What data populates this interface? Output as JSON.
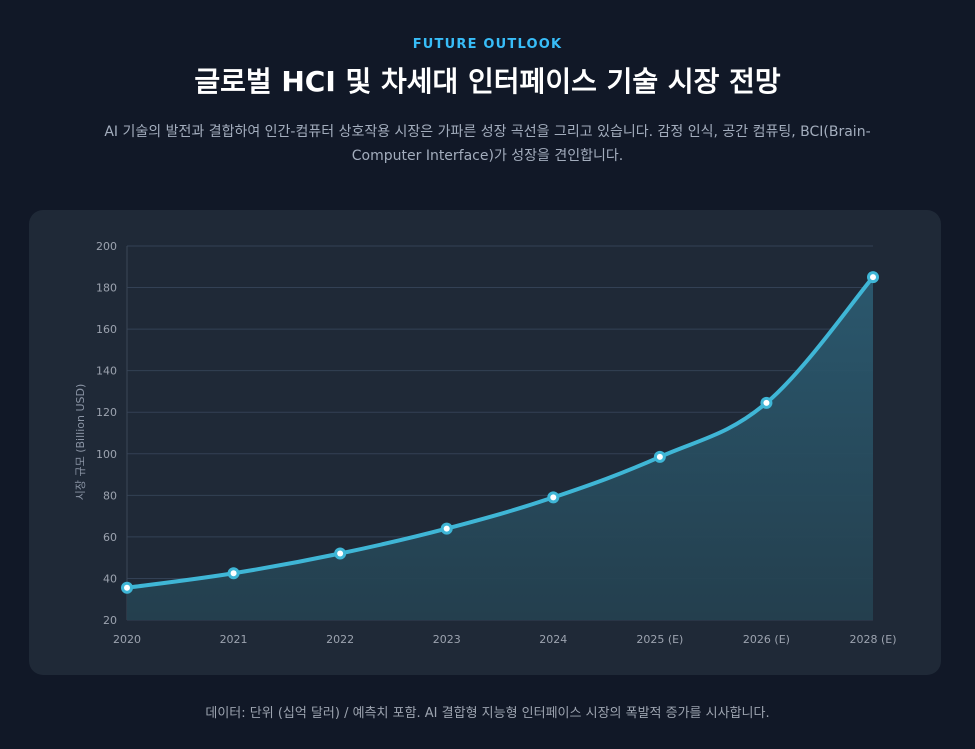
{
  "header": {
    "eyebrow": "FUTURE OUTLOOK",
    "title": "글로벌 HCI 및 차세대 인터페이스 기술 시장 전망",
    "description": "AI 기술의 발전과 결합하여 인간-컴퓨터 상호작용 시장은 가파른 성장 곡선을 그리고 있습니다. 감정 인식, 공간 컴퓨팅, BCI(Brain-Computer Interface)가 성장을 견인합니다."
  },
  "footnote": "데이터: 단위 (십억 달러) / 예측치 포함. AI 결합형 지능형 인터페이스 시장의 폭발적 증가를 시사합니다.",
  "colors": {
    "background": "#111827",
    "card": "#1f2937",
    "accent": "#38bdf8",
    "line": "#3fb6d6",
    "area": "#27475a",
    "grid": "#334155"
  },
  "chart_data": {
    "type": "area",
    "title": "",
    "xlabel": "",
    "ylabel": "시장 규모 (Billion USD)",
    "categories": [
      "2020",
      "2021",
      "2022",
      "2023",
      "2024",
      "2025 (E)",
      "2026 (E)",
      "2028 (E)"
    ],
    "series": [
      {
        "name": "",
        "values": [
          35.5,
          42.5,
          52,
          64,
          79,
          98.5,
          124.5,
          185
        ]
      }
    ],
    "ylim": [
      20,
      200
    ],
    "yticks": [
      20,
      40,
      60,
      80,
      100,
      120,
      140,
      160,
      180,
      200
    ],
    "grid": true,
    "legend": "none"
  }
}
